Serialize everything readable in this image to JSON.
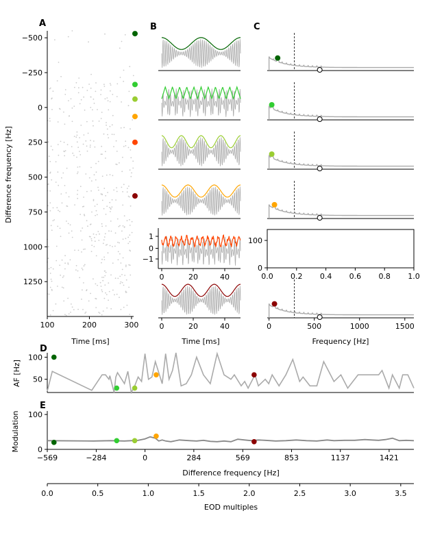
{
  "chart_data": [
    {
      "panel": "A",
      "type": "scatter",
      "xlabel": "Time [ms]",
      "ylabel": "Difference frequency [Hz]",
      "xticks": [
        "100",
        "200",
        "300"
      ],
      "yticks": [
        "−500",
        "−250",
        "0",
        "250",
        "500",
        "750",
        "1000",
        "1250"
      ],
      "xlim": [
        100,
        305
      ],
      "ylim": [
        1500,
        -550
      ],
      "y_inverted": true,
      "markers": [
        {
          "y": -530,
          "color": "#006400"
        },
        {
          "y": -165,
          "color": "#32cd32"
        },
        {
          "y": -60,
          "color": "#9acd32"
        },
        {
          "y": 65,
          "color": "#ffa500"
        },
        {
          "y": 250,
          "color": "#ff4500"
        },
        {
          "y": 635,
          "color": "#8b0000"
        }
      ]
    },
    {
      "panel": "B",
      "type": "line",
      "xlabel": "Time [ms]",
      "xticks": [
        "0",
        "20",
        "40"
      ],
      "xlim": [
        0,
        50
      ],
      "inset_yticks": [
        "1",
        "0",
        "−1"
      ],
      "traces": [
        {
          "color": "#006400",
          "envelope_cycles": 2,
          "shape": "smooth"
        },
        {
          "color": "#32cd32",
          "envelope_cycles": 11,
          "shape": "zigzag"
        },
        {
          "color": "#9acd32",
          "envelope_cycles": 4,
          "shape": "smooth"
        },
        {
          "color": "#ffa500",
          "envelope_cycles": 3,
          "shape": "smooth"
        },
        {
          "color": "#ff4500",
          "envelope_cycles": 15,
          "shape": "jagged"
        },
        {
          "color": "#8b0000",
          "envelope_cycles": 3,
          "shape": "smooth"
        }
      ]
    },
    {
      "panel": "C",
      "type": "line",
      "xlabel": "Frequency [Hz]",
      "xticks": [
        "0",
        "500",
        "1000",
        "1500"
      ],
      "xlim": [
        -20,
        1600
      ],
      "dashed_line_x": 280,
      "mid_panel": {
        "xticks": [
          "0.0",
          "0.2",
          "0.4",
          "0.6",
          "0.8",
          "1.0"
        ],
        "yticks": [
          "0",
          "100"
        ],
        "xlim": [
          0,
          1
        ],
        "ylim": [
          0,
          140
        ]
      },
      "peaks": [
        {
          "x": 95,
          "color": "#006400"
        },
        {
          "x": 30,
          "color": "#32cd32"
        },
        {
          "x": 30,
          "color": "#9acd32"
        },
        {
          "x": 60,
          "color": "#ffa500"
        },
        {
          "x": 60,
          "color": "#8b0000"
        }
      ],
      "eod_marker_x": 560
    },
    {
      "panel": "D",
      "type": "line",
      "ylabel": "AF [Hz]",
      "yticks": [
        "50",
        "100"
      ],
      "ylim": [
        20,
        110
      ],
      "xlim": [
        -569,
        1565
      ],
      "series": [
        {
          "x": [
            -569,
            -540,
            -310,
            -250,
            -230,
            -210,
            -205,
            -180,
            -170,
            -160,
            -120,
            -100,
            -80,
            -60,
            -40,
            -20,
            0,
            20,
            40,
            60,
            100,
            120,
            140,
            160,
            180,
            210,
            240,
            270,
            300,
            340,
            380,
            420,
            460,
            500,
            520,
            560,
            580,
            600,
            640,
            660,
            700,
            720,
            740,
            780,
            820,
            860,
            900,
            920,
            960,
            1000,
            1040,
            1100,
            1140,
            1180,
            1240,
            1280,
            1320,
            1360,
            1380,
            1420,
            1440,
            1480,
            1500,
            1530,
            1565
          ],
          "y": [
            23,
            68,
            25,
            60,
            60,
            50,
            58,
            20,
            55,
            65,
            40,
            68,
            20,
            35,
            55,
            45,
            108,
            50,
            55,
            90,
            40,
            108,
            50,
            70,
            110,
            35,
            40,
            60,
            100,
            60,
            40,
            108,
            60,
            50,
            60,
            35,
            45,
            30,
            60,
            35,
            50,
            40,
            60,
            35,
            60,
            95,
            45,
            55,
            35,
            35,
            90,
            45,
            60,
            30,
            60,
            60,
            60,
            60,
            70,
            30,
            60,
            30,
            60,
            60,
            30
          ]
        }
      ],
      "markers": [
        {
          "x": -530,
          "y": 100,
          "color": "#006400"
        },
        {
          "x": -165,
          "y": 30,
          "color": "#32cd32"
        },
        {
          "x": -60,
          "y": 30,
          "color": "#9acd32"
        },
        {
          "x": 65,
          "y": 60,
          "color": "#ffa500"
        },
        {
          "x": 635,
          "y": 60,
          "color": "#8b0000"
        }
      ]
    },
    {
      "panel": "E",
      "type": "line",
      "xlabel": "Difference frequency [Hz]",
      "ylabel": "Modulation",
      "yticks": [
        "0",
        "100"
      ],
      "ylim": [
        0,
        110
      ],
      "xticks": [
        "−569",
        "−284",
        "0",
        "284",
        "569",
        "853",
        "1137",
        "1421"
      ],
      "xlim": [
        -569,
        1565
      ],
      "series": [
        {
          "x": [
            -569,
            -300,
            -200,
            -120,
            -80,
            -40,
            0,
            30,
            60,
            80,
            100,
            120,
            150,
            200,
            260,
            300,
            340,
            380,
            420,
            460,
            500,
            540,
            580,
            620,
            660,
            700,
            760,
            820,
            880,
            940,
            1000,
            1060,
            1100,
            1160,
            1220,
            1280,
            1320,
            1360,
            1400,
            1440,
            1480,
            1520,
            1565
          ],
          "y": [
            25,
            24,
            25,
            24,
            25,
            26,
            30,
            36,
            32,
            24,
            27,
            24,
            22,
            27,
            25,
            24,
            26,
            23,
            22,
            24,
            22,
            29,
            27,
            25,
            27,
            26,
            24,
            25,
            27,
            25,
            24,
            27,
            25,
            26,
            26,
            28,
            27,
            26,
            28,
            32,
            25,
            26,
            25
          ]
        }
      ],
      "markers": [
        {
          "x": -530,
          "y": 20,
          "color": "#006400"
        },
        {
          "x": -165,
          "y": 25,
          "color": "#32cd32"
        },
        {
          "x": -60,
          "y": 25,
          "color": "#9acd32"
        },
        {
          "x": 65,
          "y": 38,
          "color": "#ffa500"
        },
        {
          "x": 635,
          "y": 22,
          "color": "#8b0000"
        }
      ]
    },
    {
      "panel": "E-secondary-axis",
      "type": "line",
      "xlabel": "EOD multiples",
      "xticks": [
        "0.0",
        "0.5",
        "1.0",
        "1.5",
        "2.0",
        "2.5",
        "3.0",
        "3.5"
      ],
      "xlim": [
        0,
        3.63
      ]
    }
  ],
  "labels": {
    "panel_a": "A",
    "panel_b": "B",
    "panel_c": "C",
    "panel_d": "D",
    "panel_e": "E",
    "a_xlabel": "Time [ms]",
    "a_ylabel": "Difference frequency [Hz]",
    "b_xlabel": "Time [ms]",
    "c_xlabel": "Frequency [Hz]",
    "d_ylabel": "AF [Hz]",
    "e_ylabel": "Modulation",
    "e_xlabel": "Difference frequency [Hz]",
    "eod_xlabel": "EOD multiples"
  },
  "colors": {
    "axis": "#000000",
    "trace": "#aaaaaa",
    "dot": "#cccccc",
    "dark_green": "#006400",
    "lime_green": "#32cd32",
    "yellow_green": "#9acd32",
    "orange": "#ffa500",
    "orange_red": "#ff4500",
    "dark_red": "#8b0000"
  }
}
